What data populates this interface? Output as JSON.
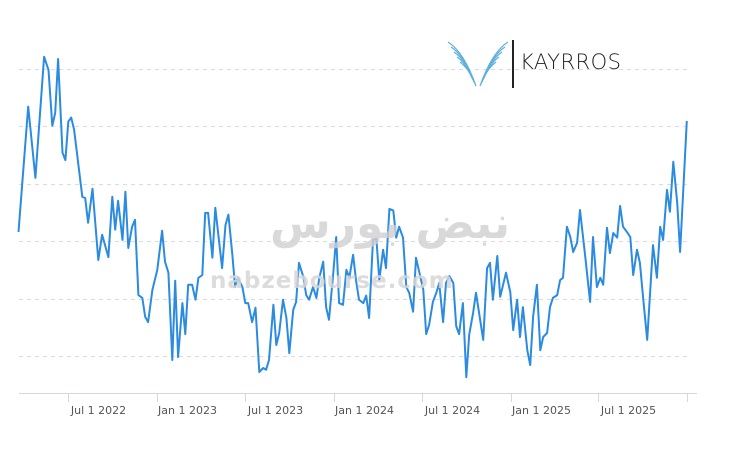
{
  "logo": {
    "text": "KAYRROS",
    "accent": "#5fb0dc"
  },
  "watermark": {
    "latin": "nabzebourse.com",
    "arabic": "نبض بورس"
  },
  "chart_data": {
    "type": "line",
    "title": "",
    "xlabel": "",
    "ylabel": "",
    "y_axis_labels_shown": false,
    "grid": "horizontal dashed",
    "line_color": "#2a8be0",
    "xlim": [
      "2022-03-19",
      "2026-01-21"
    ],
    "ylim": [
      0.355,
      6.5
    ],
    "gridlines": [
      1,
      2,
      3,
      4,
      5,
      6
    ],
    "tick_dates": [
      "2022-07-01",
      "2023-01-01",
      "2023-07-01",
      "2024-01-01",
      "2024-07-01",
      "2025-01-01",
      "2025-07-01",
      "2026-01-01"
    ],
    "tick_labels": [
      "Jul 1 2022",
      "Jan 1 2023",
      "Jul 1 2023",
      "Jan 1 2024",
      "Jul 1 2024",
      "Jan 1 2025",
      "Jul 1 2025"
    ],
    "points": [
      [
        "2022-03-20",
        3.16
      ],
      [
        "2022-04-09",
        5.34
      ],
      [
        "2022-04-24",
        4.1
      ],
      [
        "2022-05-12",
        6.21
      ],
      [
        "2022-05-21",
        5.98
      ],
      [
        "2022-05-29",
        5.01
      ],
      [
        "2022-06-04",
        5.23
      ],
      [
        "2022-06-10",
        6.17
      ],
      [
        "2022-06-19",
        4.54
      ],
      [
        "2022-06-25",
        4.41
      ],
      [
        "2022-07-01",
        5.08
      ],
      [
        "2022-07-07",
        5.15
      ],
      [
        "2022-07-13",
        4.94
      ],
      [
        "2022-07-30",
        3.77
      ],
      [
        "2022-08-05",
        3.75
      ],
      [
        "2022-08-11",
        3.32
      ],
      [
        "2022-08-20",
        3.91
      ],
      [
        "2022-09-01",
        2.67
      ],
      [
        "2022-09-09",
        3.11
      ],
      [
        "2022-09-22",
        2.72
      ],
      [
        "2022-09-30",
        3.77
      ],
      [
        "2022-10-06",
        3.2
      ],
      [
        "2022-10-12",
        3.7
      ],
      [
        "2022-10-21",
        3.02
      ],
      [
        "2022-10-27",
        3.86
      ],
      [
        "2022-11-02",
        2.88
      ],
      [
        "2022-11-10",
        3.25
      ],
      [
        "2022-11-16",
        3.37
      ],
      [
        "2022-11-23",
        2.06
      ],
      [
        "2022-12-01",
        2.01
      ],
      [
        "2022-12-07",
        1.68
      ],
      [
        "2022-12-13",
        1.59
      ],
      [
        "2022-12-22",
        2.15
      ],
      [
        "2023-01-01",
        2.5
      ],
      [
        "2023-01-11",
        3.18
      ],
      [
        "2023-01-17",
        2.64
      ],
      [
        "2023-01-24",
        2.45
      ],
      [
        "2023-02-01",
        0.93
      ],
      [
        "2023-02-07",
        2.31
      ],
      [
        "2023-02-13",
        0.98
      ],
      [
        "2023-02-22",
        1.92
      ],
      [
        "2023-02-28",
        1.38
      ],
      [
        "2023-03-06",
        2.24
      ],
      [
        "2023-03-14",
        2.24
      ],
      [
        "2023-03-21",
        1.98
      ],
      [
        "2023-03-27",
        2.36
      ],
      [
        "2023-04-04",
        2.41
      ],
      [
        "2023-04-10",
        3.49
      ],
      [
        "2023-04-16",
        3.49
      ],
      [
        "2023-04-25",
        2.71
      ],
      [
        "2023-05-01",
        3.58
      ],
      [
        "2023-05-15",
        2.53
      ],
      [
        "2023-05-22",
        3.28
      ],
      [
        "2023-05-28",
        3.46
      ],
      [
        "2023-06-05",
        2.79
      ],
      [
        "2023-06-11",
        2.2
      ],
      [
        "2023-06-17",
        2.36
      ],
      [
        "2023-06-26",
        2.2
      ],
      [
        "2023-07-02",
        1.92
      ],
      [
        "2023-07-08",
        1.92
      ],
      [
        "2023-07-16",
        1.59
      ],
      [
        "2023-07-23",
        1.84
      ],
      [
        "2023-07-31",
        0.72
      ],
      [
        "2023-08-08",
        0.79
      ],
      [
        "2023-08-14",
        0.76
      ],
      [
        "2023-08-20",
        0.93
      ],
      [
        "2023-08-29",
        1.89
      ],
      [
        "2023-09-04",
        1.19
      ],
      [
        "2023-09-10",
        1.4
      ],
      [
        "2023-09-18",
        1.98
      ],
      [
        "2023-09-25",
        1.66
      ],
      [
        "2023-10-01",
        1.05
      ],
      [
        "2023-10-09",
        1.8
      ],
      [
        "2023-10-15",
        1.94
      ],
      [
        "2023-10-21",
        2.62
      ],
      [
        "2023-10-30",
        2.38
      ],
      [
        "2023-11-05",
        2.06
      ],
      [
        "2023-11-11",
        1.98
      ],
      [
        "2023-11-19",
        2.2
      ],
      [
        "2023-11-26",
        2.01
      ],
      [
        "2023-12-02",
        2.36
      ],
      [
        "2023-12-10",
        2.64
      ],
      [
        "2023-12-16",
        1.85
      ],
      [
        "2023-12-22",
        1.63
      ],
      [
        "2023-12-31",
        2.45
      ],
      [
        "2024-01-06",
        3.07
      ],
      [
        "2024-01-12",
        1.92
      ],
      [
        "2024-01-20",
        1.89
      ],
      [
        "2024-01-27",
        2.5
      ],
      [
        "2024-02-02",
        2.36
      ],
      [
        "2024-02-10",
        2.76
      ],
      [
        "2024-02-16",
        2.32
      ],
      [
        "2024-02-22",
        1.98
      ],
      [
        "2024-03-02",
        1.92
      ],
      [
        "2024-03-08",
        2.05
      ],
      [
        "2024-03-14",
        1.66
      ],
      [
        "2024-03-22",
        3.02
      ],
      [
        "2024-03-29",
        3.04
      ],
      [
        "2024-04-04",
        2.32
      ],
      [
        "2024-04-12",
        2.85
      ],
      [
        "2024-04-18",
        2.53
      ],
      [
        "2024-04-25",
        3.56
      ],
      [
        "2024-05-03",
        3.53
      ],
      [
        "2024-05-09",
        3.06
      ],
      [
        "2024-05-15",
        3.25
      ],
      [
        "2024-05-23",
        3.06
      ],
      [
        "2024-05-30",
        2.2
      ],
      [
        "2024-06-05",
        2.1
      ],
      [
        "2024-06-13",
        1.77
      ],
      [
        "2024-06-19",
        2.71
      ],
      [
        "2024-06-26",
        2.45
      ],
      [
        "2024-07-04",
        2.15
      ],
      [
        "2024-07-10",
        1.38
      ],
      [
        "2024-07-16",
        1.54
      ],
      [
        "2024-07-24",
        1.94
      ],
      [
        "2024-07-31",
        2.1
      ],
      [
        "2024-08-06",
        2.27
      ],
      [
        "2024-08-14",
        1.59
      ],
      [
        "2024-08-20",
        2.27
      ],
      [
        "2024-08-27",
        2.39
      ],
      [
        "2024-09-04",
        2.27
      ],
      [
        "2024-09-10",
        1.52
      ],
      [
        "2024-09-16",
        1.38
      ],
      [
        "2024-09-24",
        1.92
      ],
      [
        "2024-10-01",
        0.63
      ],
      [
        "2024-10-07",
        1.37
      ],
      [
        "2024-10-15",
        1.75
      ],
      [
        "2024-10-21",
        2.1
      ],
      [
        "2024-11-05",
        1.28
      ],
      [
        "2024-11-13",
        2.53
      ],
      [
        "2024-11-19",
        2.62
      ],
      [
        "2024-11-25",
        1.98
      ],
      [
        "2024-12-04",
        2.74
      ],
      [
        "2024-12-10",
        2.03
      ],
      [
        "2024-12-22",
        2.45
      ],
      [
        "2024-12-31",
        2.11
      ],
      [
        "2025-01-06",
        1.45
      ],
      [
        "2025-01-14",
        1.98
      ],
      [
        "2025-01-20",
        1.33
      ],
      [
        "2025-01-26",
        1.85
      ],
      [
        "2025-02-04",
        1.1
      ],
      [
        "2025-02-10",
        0.84
      ],
      [
        "2025-02-16",
        1.68
      ],
      [
        "2025-02-24",
        2.24
      ],
      [
        "2025-03-03",
        1.1
      ],
      [
        "2025-03-09",
        1.33
      ],
      [
        "2025-03-17",
        1.4
      ],
      [
        "2025-03-23",
        1.85
      ],
      [
        "2025-03-29",
        2.01
      ],
      [
        "2025-04-07",
        2.06
      ],
      [
        "2025-04-13",
        2.32
      ],
      [
        "2025-04-19",
        2.36
      ],
      [
        "2025-04-27",
        3.25
      ],
      [
        "2025-05-04",
        3.07
      ],
      [
        "2025-05-10",
        2.81
      ],
      [
        "2025-05-18",
        2.97
      ],
      [
        "2025-05-24",
        3.54
      ],
      [
        "2025-06-04",
        2.72
      ],
      [
        "2025-06-14",
        1.94
      ],
      [
        "2025-06-20",
        3.07
      ],
      [
        "2025-06-28",
        2.2
      ],
      [
        "2025-07-05",
        2.36
      ],
      [
        "2025-07-11",
        2.24
      ],
      [
        "2025-07-19",
        3.23
      ],
      [
        "2025-07-25",
        2.79
      ],
      [
        "2025-08-01",
        3.14
      ],
      [
        "2025-08-09",
        3.06
      ],
      [
        "2025-08-15",
        3.61
      ],
      [
        "2025-08-21",
        3.25
      ],
      [
        "2025-08-29",
        3.16
      ],
      [
        "2025-09-05",
        3.07
      ],
      [
        "2025-09-11",
        2.41
      ],
      [
        "2025-09-19",
        2.85
      ],
      [
        "2025-09-25",
        2.62
      ],
      [
        "2025-10-02",
        1.98
      ],
      [
        "2025-10-10",
        1.28
      ],
      [
        "2025-10-16",
        2.1
      ],
      [
        "2025-10-22",
        2.93
      ],
      [
        "2025-10-30",
        2.36
      ],
      [
        "2025-11-06",
        3.25
      ],
      [
        "2025-11-12",
        3.02
      ],
      [
        "2025-11-20",
        3.89
      ],
      [
        "2025-11-26",
        3.51
      ],
      [
        "2025-12-03",
        4.38
      ],
      [
        "2025-12-11",
        3.67
      ],
      [
        "2025-12-17",
        2.81
      ],
      [
        "2025-12-31",
        5.09
      ]
    ]
  }
}
